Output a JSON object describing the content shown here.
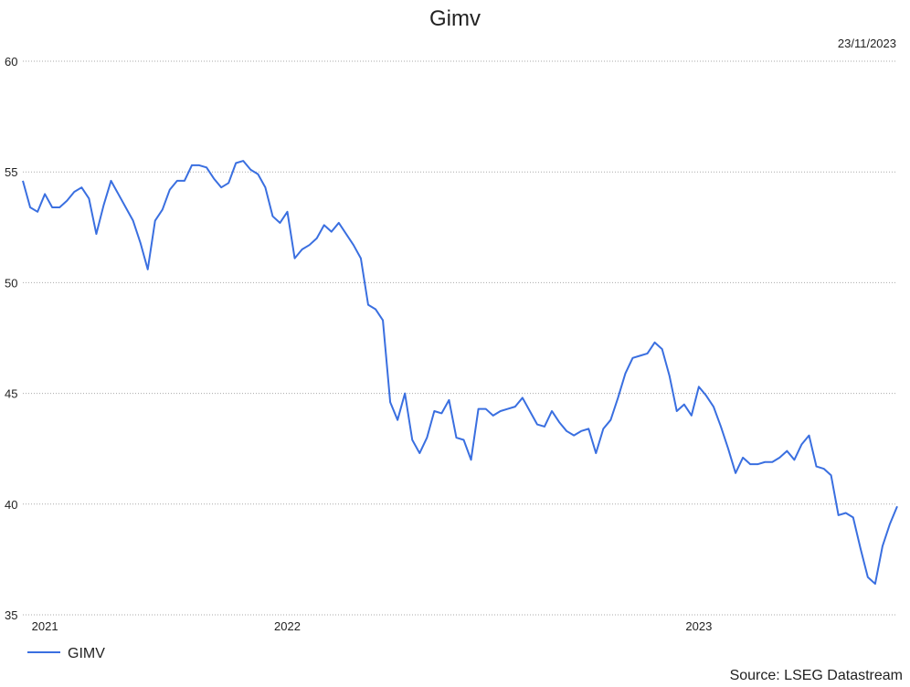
{
  "chart_data": {
    "type": "line",
    "title": "Gimv",
    "date": "23/11/2023",
    "source": "Source: LSEG Datastream",
    "categories": [
      null,
      null,
      null,
      "2021",
      null,
      null,
      null,
      null,
      null,
      null,
      null,
      null,
      null,
      null,
      null,
      null,
      null,
      null,
      null,
      null,
      null,
      null,
      null,
      null,
      null,
      null,
      null,
      null,
      null,
      null,
      null,
      null,
      null,
      null,
      null,
      null,
      "2022",
      null,
      null,
      null,
      null,
      null,
      null,
      null,
      null,
      null,
      null,
      null,
      null,
      null,
      null,
      null,
      null,
      null,
      null,
      null,
      null,
      null,
      null,
      null,
      null,
      null,
      null,
      null,
      null,
      null,
      null,
      null,
      null,
      null,
      null,
      null,
      null,
      null,
      null,
      null,
      null,
      null,
      null,
      null,
      null,
      null,
      null,
      null,
      null,
      null,
      null,
      null,
      null,
      null,
      null,
      null,
      "2023",
      null,
      null,
      null,
      null,
      null,
      null,
      null,
      null,
      null,
      null,
      null,
      null,
      null,
      null,
      null,
      null,
      null,
      null,
      null,
      null,
      null,
      null,
      null,
      null,
      null,
      null,
      null
    ],
    "series": [
      {
        "name": "GIMV",
        "color": "#3a6fe0",
        "values": [
          54.6,
          53.4,
          53.2,
          54.0,
          53.4,
          53.4,
          53.7,
          54.1,
          54.3,
          53.8,
          52.2,
          53.5,
          54.6,
          54.0,
          53.4,
          52.8,
          51.8,
          50.6,
          52.8,
          53.3,
          54.2,
          54.6,
          54.6,
          55.3,
          55.3,
          55.2,
          54.7,
          54.3,
          54.5,
          55.4,
          55.5,
          55.1,
          54.9,
          54.3,
          53.0,
          52.7,
          53.2,
          51.1,
          51.5,
          51.7,
          52.0,
          52.6,
          52.3,
          52.7,
          52.2,
          51.7,
          51.1,
          49.0,
          48.8,
          48.3,
          44.6,
          43.8,
          45.0,
          42.9,
          42.3,
          43.0,
          44.2,
          44.1,
          44.7,
          43.0,
          42.9,
          42.0,
          44.3,
          44.3,
          44.0,
          44.2,
          44.3,
          44.4,
          44.8,
          44.2,
          43.6,
          43.5,
          44.2,
          43.7,
          43.3,
          43.1,
          43.3,
          43.4,
          42.3,
          43.4,
          43.8,
          44.8,
          45.9,
          46.6,
          46.7,
          46.8,
          47.3,
          47.0,
          45.8,
          44.2,
          44.5,
          44.0,
          45.3,
          44.9,
          44.4,
          43.5,
          42.5,
          41.4,
          42.1,
          41.8,
          41.8,
          41.9,
          41.9,
          42.1,
          42.4,
          42.0,
          42.7,
          43.1,
          41.7,
          41.6,
          41.3,
          39.5,
          39.6,
          39.4,
          38.0,
          36.7,
          36.4,
          38.1,
          39.1,
          39.9
        ]
      }
    ],
    "ylim": [
      35,
      60
    ],
    "yticks": [
      35,
      40,
      45,
      50,
      55,
      60
    ],
    "grid": true,
    "legend": "bottom-left"
  }
}
